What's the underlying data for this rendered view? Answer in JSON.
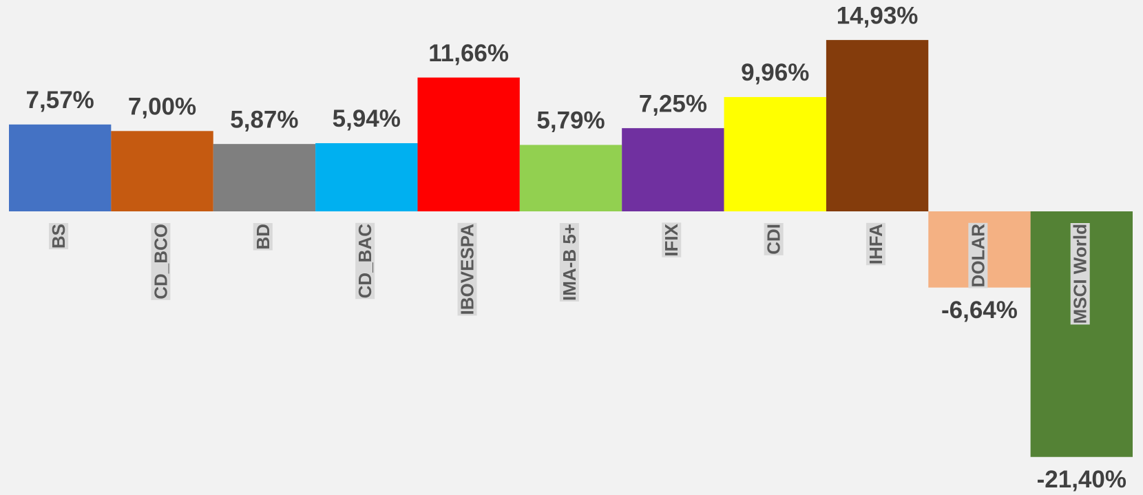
{
  "chart_data": {
    "type": "bar",
    "categories": [
      "BS",
      "CD_BCO",
      "BD",
      "CD_BAC",
      "IBOVESPA",
      "IMA-B 5+",
      "IFIX",
      "CDI",
      "IHFA",
      "DOLAR",
      "MSCI World"
    ],
    "values": [
      7.57,
      7.0,
      5.87,
      5.94,
      11.66,
      5.79,
      7.25,
      9.96,
      14.93,
      -6.64,
      -21.4
    ],
    "value_labels": [
      "7,57%",
      "7,00%",
      "5,87%",
      "5,94%",
      "11,66%",
      "5,79%",
      "7,25%",
      "9,96%",
      "14,93%",
      "-6,64%",
      "-21,40%"
    ],
    "colors": [
      "#4472c4",
      "#c55a11",
      "#7f7f7f",
      "#00b0f0",
      "#ff0000",
      "#92d050",
      "#7030a0",
      "#ffff00",
      "#843c0c",
      "#f4b183",
      "#548235"
    ]
  }
}
